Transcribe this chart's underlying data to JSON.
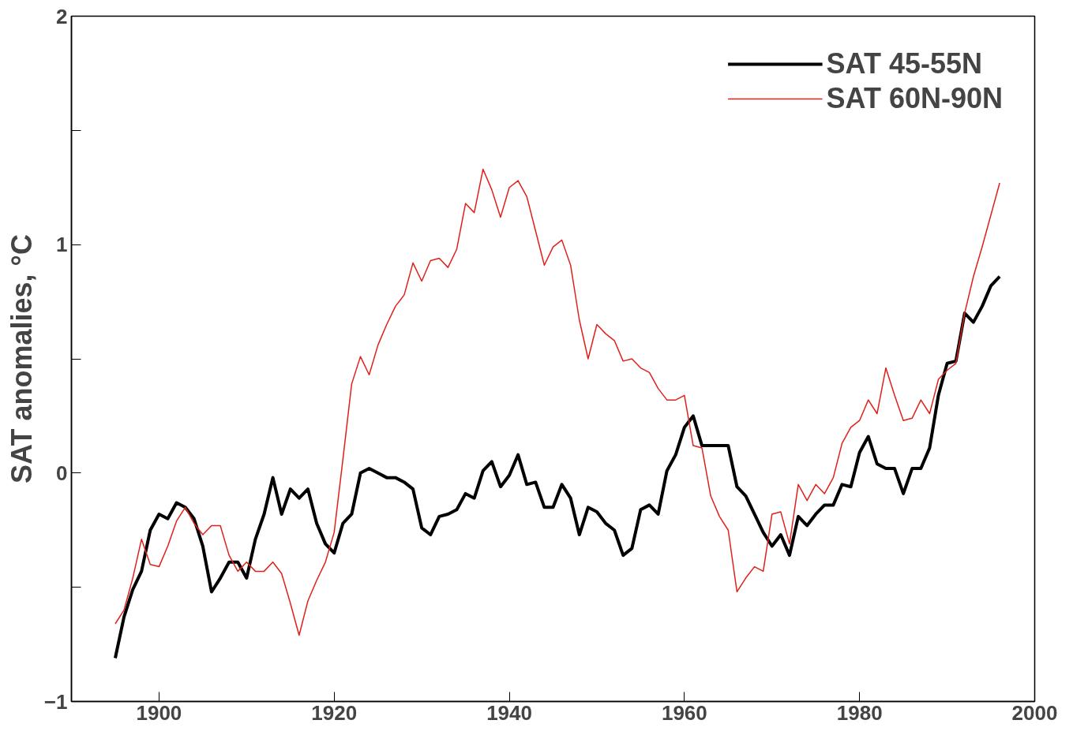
{
  "chart_data": {
    "type": "line",
    "ylabel": "SAT anomalies, °C",
    "xlim": [
      1890,
      2000
    ],
    "ylim": [
      -1,
      2
    ],
    "xticks": [
      1900,
      1920,
      1940,
      1960,
      1980,
      2000
    ],
    "yticks": [
      -1,
      {
        "value": -0.5,
        "label": null
      },
      0,
      {
        "value": 0.5,
        "label": null
      },
      1,
      {
        "value": 1.5,
        "label": null
      },
      2
    ],
    "x": [
      1895,
      1896,
      1897,
      1898,
      1899,
      1900,
      1901,
      1902,
      1903,
      1904,
      1905,
      1906,
      1907,
      1908,
      1909,
      1910,
      1911,
      1912,
      1913,
      1914,
      1915,
      1916,
      1917,
      1918,
      1919,
      1920,
      1921,
      1922,
      1923,
      1924,
      1925,
      1926,
      1927,
      1928,
      1929,
      1930,
      1931,
      1932,
      1933,
      1934,
      1935,
      1936,
      1937,
      1938,
      1939,
      1940,
      1941,
      1942,
      1943,
      1944,
      1945,
      1946,
      1947,
      1948,
      1949,
      1950,
      1951,
      1952,
      1953,
      1954,
      1955,
      1956,
      1957,
      1958,
      1959,
      1960,
      1961,
      1962,
      1963,
      1964,
      1965,
      1966,
      1967,
      1968,
      1969,
      1970,
      1971,
      1972,
      1973,
      1974,
      1975,
      1976,
      1977,
      1978,
      1979,
      1980,
      1981,
      1982,
      1983,
      1984,
      1985,
      1986,
      1987,
      1988,
      1989,
      1990,
      1991,
      1992,
      1993,
      1994,
      1995,
      1996
    ],
    "series": [
      {
        "name": "SAT 45-55N",
        "color": "#000000",
        "values": [
          -0.81,
          -0.63,
          -0.51,
          -0.43,
          -0.25,
          -0.18,
          -0.2,
          -0.13,
          -0.15,
          -0.2,
          -0.32,
          -0.52,
          -0.46,
          -0.39,
          -0.39,
          -0.46,
          -0.29,
          -0.18,
          -0.02,
          -0.18,
          -0.07,
          -0.11,
          -0.07,
          -0.22,
          -0.31,
          -0.35,
          -0.22,
          -0.18,
          0.0,
          0.02,
          0.0,
          -0.02,
          -0.02,
          -0.04,
          -0.07,
          -0.24,
          -0.27,
          -0.19,
          -0.18,
          -0.16,
          -0.09,
          -0.11,
          0.01,
          0.05,
          -0.06,
          -0.01,
          0.08,
          -0.05,
          -0.04,
          -0.15,
          -0.15,
          -0.05,
          -0.11,
          -0.27,
          -0.15,
          -0.17,
          -0.22,
          -0.25,
          -0.36,
          -0.33,
          -0.16,
          -0.14,
          -0.18,
          0.01,
          0.08,
          0.2,
          0.25,
          0.12,
          0.12,
          0.12,
          0.12,
          -0.06,
          -0.1,
          -0.18,
          -0.26,
          -0.32,
          -0.27,
          -0.36,
          -0.19,
          -0.23,
          -0.18,
          -0.14,
          -0.14,
          -0.05,
          -0.06,
          0.09,
          0.16,
          0.04,
          0.02,
          0.02,
          -0.09,
          0.02,
          0.02,
          0.11,
          0.34,
          0.48,
          0.49,
          0.7,
          0.66,
          0.73,
          0.82,
          0.86
        ]
      },
      {
        "name": "SAT 60N-90N",
        "color": "#e0201b",
        "values": [
          -0.66,
          -0.6,
          -0.46,
          -0.29,
          -0.4,
          -0.41,
          -0.32,
          -0.21,
          -0.15,
          -0.22,
          -0.27,
          -0.23,
          -0.23,
          -0.36,
          -0.43,
          -0.39,
          -0.43,
          -0.43,
          -0.39,
          -0.44,
          -0.57,
          -0.71,
          -0.56,
          -0.47,
          -0.39,
          -0.26,
          0.06,
          0.39,
          0.51,
          0.43,
          0.56,
          0.65,
          0.73,
          0.78,
          0.92,
          0.84,
          0.93,
          0.94,
          0.9,
          0.98,
          1.18,
          1.14,
          1.33,
          1.24,
          1.12,
          1.25,
          1.28,
          1.21,
          1.06,
          0.91,
          0.99,
          1.02,
          0.91,
          0.67,
          0.5,
          0.65,
          0.61,
          0.58,
          0.49,
          0.5,
          0.46,
          0.44,
          0.37,
          0.32,
          0.32,
          0.34,
          0.12,
          0.11,
          -0.1,
          -0.19,
          -0.25,
          -0.52,
          -0.46,
          -0.41,
          -0.43,
          -0.18,
          -0.17,
          -0.31,
          -0.05,
          -0.12,
          -0.05,
          -0.09,
          -0.02,
          0.13,
          0.2,
          0.23,
          0.32,
          0.26,
          0.46,
          0.34,
          0.23,
          0.24,
          0.32,
          0.26,
          0.41,
          0.45,
          0.48,
          0.7,
          0.86,
          0.99,
          1.13,
          1.27
        ]
      }
    ],
    "legend": "top right",
    "grid": false,
    "line_style": "solid",
    "marker": "none"
  }
}
